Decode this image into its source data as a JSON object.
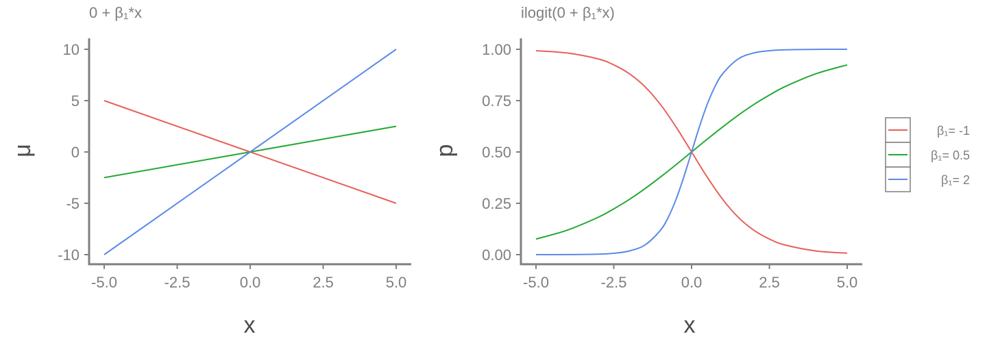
{
  "colors": {
    "red": "#E8605A",
    "green": "#22AA33",
    "blue": "#5A8AE8",
    "axis": "#7f7f7f"
  },
  "legend": {
    "placement": "right",
    "entries": [
      {
        "label": "β₁= -1",
        "color": "#E8605A"
      },
      {
        "label": "β₁= 0.5",
        "color": "#22AA33"
      },
      {
        "label": "β₁= 2",
        "color": "#5A8AE8"
      }
    ]
  },
  "chart_data": [
    {
      "type": "line",
      "title": "0 + β₁*x",
      "xlabel": "x",
      "ylabel": "μ",
      "xlim": [
        -5,
        5
      ],
      "ylim": [
        -10,
        10
      ],
      "xticks": [
        -5,
        -2.5,
        0,
        2.5,
        5
      ],
      "xtick_labels": [
        "-5.0",
        "-2.5",
        "0.0",
        "2.5",
        "5.0"
      ],
      "yticks": [
        -10,
        -5,
        0,
        5,
        10
      ],
      "ytick_labels": [
        "-10",
        "-5",
        "0",
        "5",
        "10"
      ],
      "grid": false,
      "series": [
        {
          "name": "β₁= -1",
          "color": "#E8605A",
          "x": [
            -5,
            5
          ],
          "y": [
            5,
            -5
          ]
        },
        {
          "name": "β₁= 0.5",
          "color": "#22AA33",
          "x": [
            -5,
            5
          ],
          "y": [
            -2.5,
            2.5
          ]
        },
        {
          "name": "β₁= 2",
          "color": "#5A8AE8",
          "x": [
            -5,
            5
          ],
          "y": [
            -10,
            10
          ]
        }
      ]
    },
    {
      "type": "line",
      "title": "ilogit(0 + β₁*x)",
      "xlabel": "x",
      "ylabel": "p",
      "xlim": [
        -5,
        5
      ],
      "ylim": [
        0,
        1
      ],
      "xticks": [
        -5,
        -2.5,
        0,
        2.5,
        5
      ],
      "xtick_labels": [
        "-5.0",
        "-2.5",
        "0.0",
        "2.5",
        "5.0"
      ],
      "yticks": [
        0,
        0.25,
        0.5,
        0.75,
        1
      ],
      "ytick_labels": [
        "0.00",
        "0.25",
        "0.50",
        "0.75",
        "1.00"
      ],
      "grid": false,
      "series": [
        {
          "name": "β₁= -1",
          "color": "#E8605A",
          "x": [
            -5,
            -4,
            -3,
            -2.5,
            -2,
            -1.5,
            -1,
            -0.5,
            0,
            0.5,
            1,
            1.5,
            2,
            2.5,
            3,
            4,
            5
          ],
          "y": [
            0.993,
            0.982,
            0.953,
            0.924,
            0.881,
            0.818,
            0.731,
            0.622,
            0.5,
            0.378,
            0.269,
            0.182,
            0.119,
            0.076,
            0.047,
            0.018,
            0.007
          ]
        },
        {
          "name": "β₁= 0.5",
          "color": "#22AA33",
          "x": [
            -5,
            -4,
            -3,
            -2.5,
            -2,
            -1.5,
            -1,
            -0.5,
            0,
            0.5,
            1,
            1.5,
            2,
            2.5,
            3,
            4,
            5
          ],
          "y": [
            0.076,
            0.119,
            0.182,
            0.223,
            0.269,
            0.321,
            0.378,
            0.438,
            0.5,
            0.562,
            0.622,
            0.679,
            0.731,
            0.777,
            0.818,
            0.881,
            0.924
          ]
        },
        {
          "name": "β₁= 2",
          "color": "#5A8AE8",
          "x": [
            -5,
            -4,
            -3,
            -2.5,
            -2,
            -1.5,
            -1,
            -0.75,
            -0.5,
            -0.25,
            0,
            0.25,
            0.5,
            0.75,
            1,
            1.5,
            2,
            2.5,
            3,
            4,
            5
          ],
          "y": [
            0.0,
            0.0003,
            0.0025,
            0.0067,
            0.018,
            0.047,
            0.119,
            0.182,
            0.269,
            0.378,
            0.5,
            0.622,
            0.731,
            0.818,
            0.881,
            0.953,
            0.982,
            0.993,
            0.9975,
            0.9997,
            1.0
          ]
        }
      ]
    }
  ]
}
